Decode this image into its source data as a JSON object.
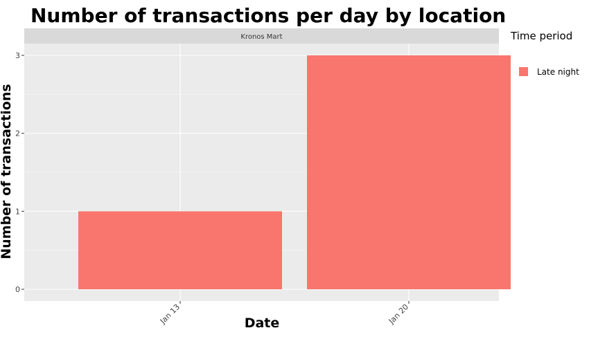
{
  "chart_data": {
    "type": "bar",
    "title": "Number of transactions per day by location",
    "xlabel": "Date",
    "ylabel": "Number of transactions",
    "facet": "Kronos Mart",
    "categories": [
      "Jan 13",
      "Jan 20"
    ],
    "series": [
      {
        "name": "Late night",
        "color": "#F8766D",
        "values": [
          1,
          3
        ]
      }
    ],
    "ylim": [
      0,
      3
    ],
    "yticks": [
      0,
      1,
      2,
      3
    ],
    "legend": {
      "title": "Time period",
      "position": "right"
    },
    "grid": true
  }
}
